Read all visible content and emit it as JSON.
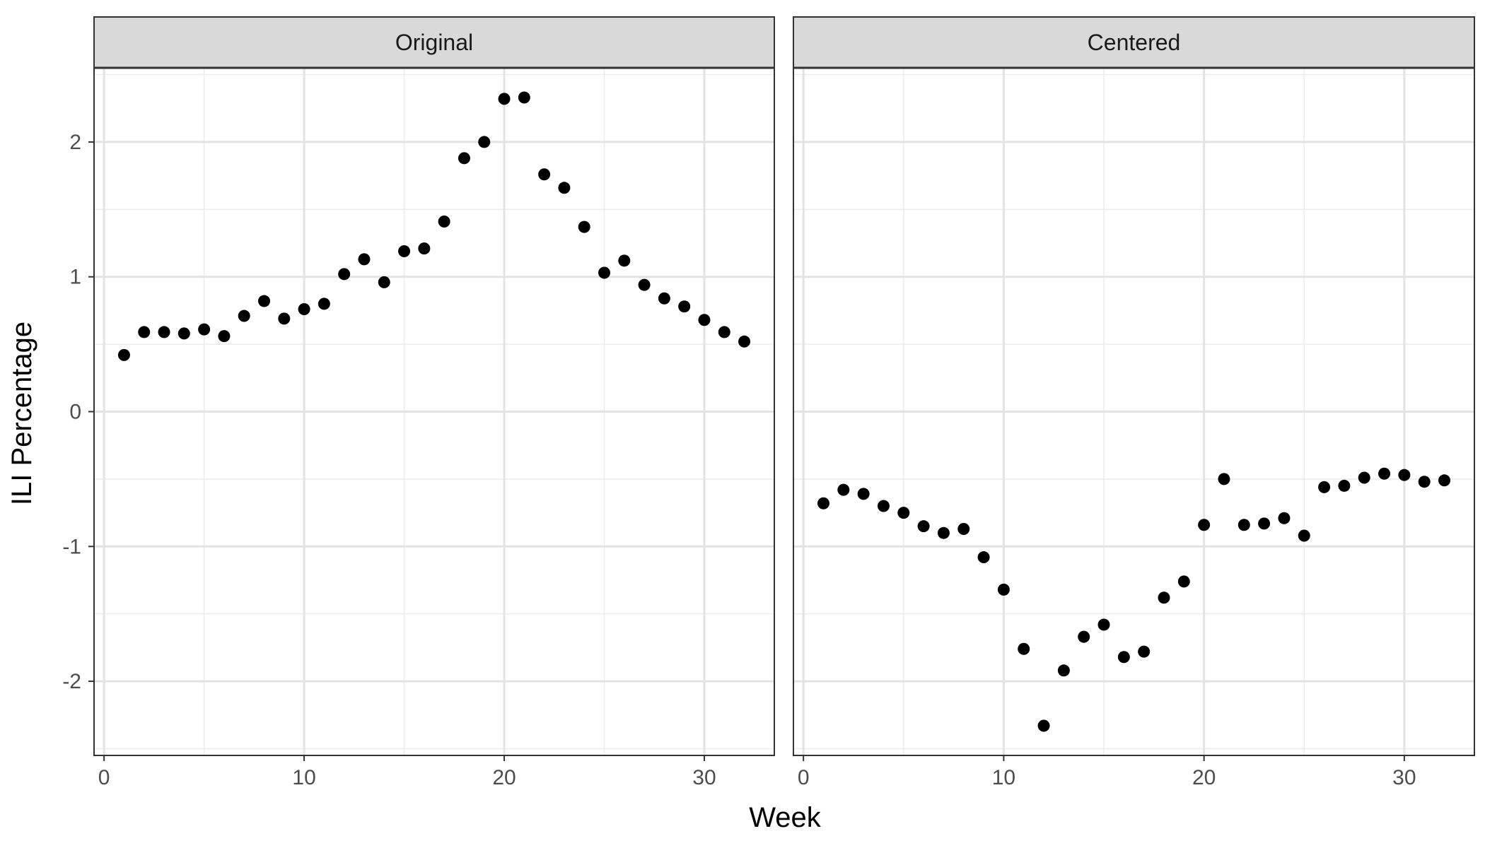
{
  "chart_data": {
    "type": "scatter",
    "xlabel": "Week",
    "ylabel": "ILI Percentage",
    "xlim": [
      -0.5,
      33.5
    ],
    "ylim": [
      -2.55,
      2.55
    ],
    "x_ticks": [
      0,
      10,
      20,
      30
    ],
    "x_tick_labels": [
      "0",
      "10",
      "20",
      "30"
    ],
    "y_ticks": [
      -2,
      -1,
      0,
      1,
      2
    ],
    "y_tick_labels": [
      "-2",
      "-1",
      "0",
      "1",
      "2"
    ],
    "grid": true,
    "point_color": "#000000",
    "panels": [
      {
        "strip": "Original",
        "x": [
          1,
          2,
          3,
          4,
          5,
          6,
          7,
          8,
          9,
          10,
          11,
          12,
          13,
          14,
          15,
          16,
          17,
          18,
          19,
          20,
          21,
          22,
          23,
          24,
          25,
          26,
          27,
          28,
          29,
          30,
          31,
          32
        ],
        "y": [
          0.42,
          0.59,
          0.59,
          0.58,
          0.61,
          0.56,
          0.71,
          0.82,
          0.69,
          0.76,
          0.8,
          1.02,
          1.13,
          0.96,
          1.19,
          1.21,
          1.41,
          1.88,
          2.0,
          2.32,
          2.33,
          1.76,
          1.66,
          1.37,
          1.03,
          1.12,
          0.94,
          0.84,
          0.78,
          0.68,
          0.59,
          0.52
        ]
      },
      {
        "strip": "Centered",
        "x": [
          1,
          2,
          3,
          4,
          5,
          6,
          7,
          8,
          9,
          10,
          11,
          12,
          13,
          14,
          15,
          16,
          17,
          18,
          19,
          20,
          21,
          22,
          23,
          24,
          25,
          26,
          27,
          28,
          29,
          30,
          31,
          32
        ],
        "y": [
          -0.68,
          -0.58,
          -0.61,
          -0.7,
          -0.75,
          -0.85,
          -0.9,
          -0.87,
          -1.08,
          -1.32,
          -1.76,
          -2.33,
          -1.92,
          -1.67,
          -1.58,
          -1.82,
          -1.78,
          -1.38,
          -1.26,
          -0.84,
          -0.5,
          -0.84,
          -0.83,
          -0.79,
          -0.92,
          -0.56,
          -0.55,
          -0.49,
          -0.46,
          -0.47,
          -0.52,
          -0.51
        ]
      }
    ]
  }
}
